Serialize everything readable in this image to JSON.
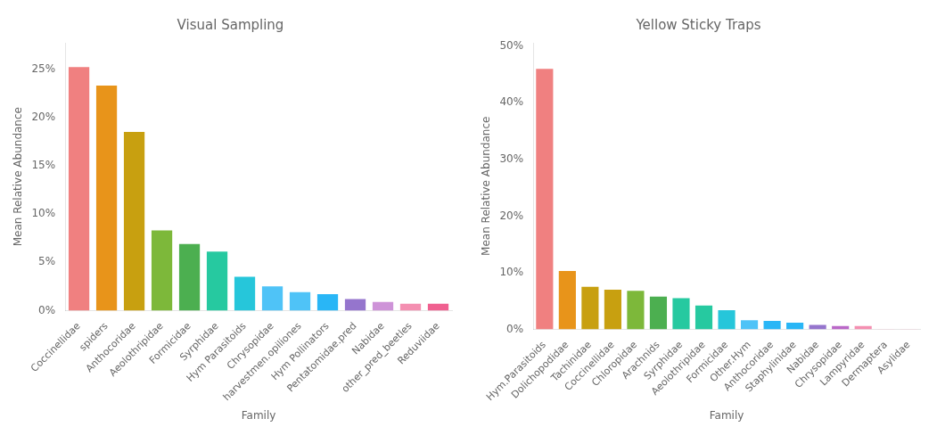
{
  "chart_data": [
    {
      "type": "bar",
      "title": "Visual Sampling",
      "x_label": "Family",
      "y_label": "Mean Relative Abundance",
      "categories": [
        "Coccinellidae",
        "spiders",
        "Anthocoridae",
        "Aeolothripidae",
        "Formicidae",
        "Syrphidae",
        "Hym Parasitoids",
        "Chrysopidae",
        "harvestmen.opiliones",
        "Hym Pollinators",
        "Pentatomidae.pred",
        "Nabidae",
        "other_pred_beetles",
        "Reduviidae"
      ],
      "values": [
        0.252,
        0.233,
        0.185,
        0.083,
        0.069,
        0.061,
        0.035,
        0.025,
        0.019,
        0.017,
        0.012,
        0.009,
        0.007,
        0.007
      ],
      "colors": [
        "#F08080",
        "#E8941A",
        "#C8A010",
        "#7DB83A",
        "#4CAF50",
        "#26C9A0",
        "#26C6DA",
        "#4FC3F7",
        "#4FC3F7",
        "#29B6F6",
        "#9575CD",
        "#CE93D8",
        "#F48FB1",
        "#F06090"
      ],
      "ylim": [
        0,
        0.2772
      ],
      "yticks": [
        {
          "value": 0,
          "label": "0%"
        },
        {
          "value": 0.05,
          "label": "5%"
        },
        {
          "value": 0.1,
          "label": "10%"
        },
        {
          "value": 0.15,
          "label": "15%"
        },
        {
          "value": 0.2,
          "label": "20%"
        },
        {
          "value": 0.25,
          "label": "25%"
        }
      ],
      "grid": false
    },
    {
      "type": "bar",
      "title": "Yellow Sticky Traps",
      "x_label": "Family",
      "y_label": "Mean Relative Abundance",
      "categories": [
        "Hym.Parasitoids",
        "Dolichopodidae",
        "Tachinidae",
        "Coccinellidae",
        "Chloropidae",
        "Arachnids",
        "Syrphidae",
        "Aeolothripidae",
        "Formicidae",
        "Other.Hym",
        "Anthocoridae",
        "Staphylinidae",
        "Nabidae",
        "Chrysopidae",
        "Lampyridae",
        "Dermaptera",
        "Asylidae"
      ],
      "values": [
        0.46,
        0.103,
        0.075,
        0.07,
        0.068,
        0.058,
        0.055,
        0.042,
        0.034,
        0.016,
        0.015,
        0.012,
        0.008,
        0.006,
        0.006,
        0.001,
        0.001
      ],
      "colors": [
        "#F08080",
        "#E8941A",
        "#C8A010",
        "#C8A010",
        "#7DB83A",
        "#4CAF50",
        "#26C9A0",
        "#26C9A0",
        "#26C6DA",
        "#4FC3F7",
        "#29B6F6",
        "#29B6F6",
        "#9575CD",
        "#BA68C8",
        "#F48FB1",
        "#F8C8D8",
        "#F8C8D8"
      ],
      "ylim": [
        0,
        0.506
      ],
      "yticks": [
        {
          "value": 0,
          "label": "0%"
        },
        {
          "value": 0.1,
          "label": "10%"
        },
        {
          "value": 0.2,
          "label": "20%"
        },
        {
          "value": 0.3,
          "label": "30%"
        },
        {
          "value": 0.4,
          "label": "40%"
        },
        {
          "value": 0.5,
          "label": "50%"
        }
      ],
      "grid": false
    }
  ]
}
